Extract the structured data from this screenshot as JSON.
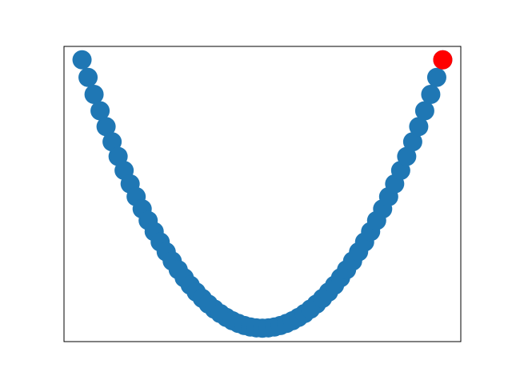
{
  "chart_data": {
    "type": "scatter",
    "title": "",
    "xlabel": "",
    "ylabel": "",
    "axes_visible_ticks": false,
    "grid": false,
    "xlim": [
      -3.3,
      3.3
    ],
    "ylim": [
      -0.45,
      9.45
    ],
    "series": [
      {
        "color": "#1f77b4",
        "x": [
          -3.0,
          -2.9,
          -2.8,
          -2.7,
          -2.6,
          -2.5,
          -2.4,
          -2.3,
          -2.2,
          -2.1,
          -2.0,
          -1.9,
          -1.8,
          -1.7,
          -1.6,
          -1.5,
          -1.4,
          -1.3,
          -1.2,
          -1.1,
          -1.0,
          -0.9,
          -0.8,
          -0.7,
          -0.6,
          -0.5,
          -0.4,
          -0.3,
          -0.2,
          -0.1,
          0.0,
          0.1,
          0.2,
          0.3,
          0.4,
          0.5,
          0.6,
          0.7,
          0.8,
          0.9,
          1.0,
          1.1,
          1.2,
          1.3,
          1.4,
          1.5,
          1.6,
          1.7,
          1.8,
          1.9,
          2.0,
          2.1,
          2.2,
          2.3,
          2.4,
          2.5,
          2.6,
          2.7,
          2.8,
          2.9,
          3.0
        ],
        "y": [
          9.0,
          8.41,
          7.84,
          7.29,
          6.76,
          6.25,
          5.76,
          5.29,
          4.84,
          4.41,
          4.0,
          3.61,
          3.24,
          2.89,
          2.56,
          2.25,
          1.96,
          1.69,
          1.44,
          1.21,
          1.0,
          0.81,
          0.64,
          0.49,
          0.36,
          0.25,
          0.16,
          0.09,
          0.04,
          0.01,
          0.0,
          0.01,
          0.04,
          0.09,
          0.16,
          0.25,
          0.36,
          0.49,
          0.64,
          0.81,
          1.0,
          1.21,
          1.44,
          1.69,
          1.96,
          2.25,
          2.56,
          2.89,
          3.24,
          3.61,
          4.0,
          4.41,
          4.84,
          5.29,
          5.76,
          6.25,
          6.76,
          7.29,
          7.84,
          8.41,
          9.0
        ]
      },
      {
        "color": "#ff0000",
        "x": [
          3.0
        ],
        "y": [
          9.0
        ]
      }
    ]
  }
}
